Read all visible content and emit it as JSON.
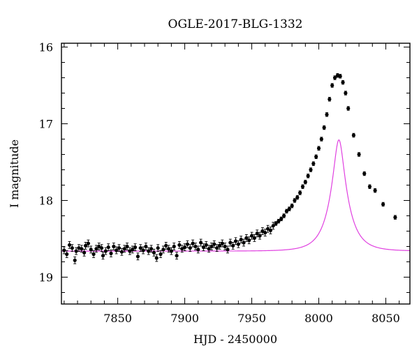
{
  "chart_data": {
    "type": "scatter",
    "title": "OGLE-2017-BLG-1332",
    "xlabel": "HJD - 2450000",
    "ylabel": "I magnitude",
    "xlim": [
      7808,
      8068
    ],
    "ylim": [
      19.35,
      15.95
    ],
    "y_inverted": true,
    "grid": false,
    "xticks": [
      "7850",
      "7900",
      "7950",
      "8000",
      "8050"
    ],
    "yticks": [
      "16",
      "17",
      "18",
      "19"
    ],
    "colors": {
      "data": "#000000",
      "model": "#e040e0",
      "frame": "#000000"
    },
    "series": [
      {
        "kind": "data-points-with-error-bars",
        "points": [
          [
            7810,
            18.65
          ],
          [
            7812,
            18.7
          ],
          [
            7814,
            18.58
          ],
          [
            7816,
            18.62
          ],
          [
            7818,
            18.78
          ],
          [
            7819,
            18.66
          ],
          [
            7821,
            18.62
          ],
          [
            7823,
            18.63
          ],
          [
            7825,
            18.68
          ],
          [
            7826,
            18.59
          ],
          [
            7828,
            18.56
          ],
          [
            7830,
            18.64
          ],
          [
            7832,
            18.7
          ],
          [
            7834,
            18.63
          ],
          [
            7836,
            18.6
          ],
          [
            7838,
            18.62
          ],
          [
            7839,
            18.72
          ],
          [
            7841,
            18.66
          ],
          [
            7843,
            18.61
          ],
          [
            7845,
            18.69
          ],
          [
            7847,
            18.6
          ],
          [
            7849,
            18.65
          ],
          [
            7851,
            18.62
          ],
          [
            7853,
            18.67
          ],
          [
            7855,
            18.63
          ],
          [
            7857,
            18.6
          ],
          [
            7859,
            18.66
          ],
          [
            7861,
            18.64
          ],
          [
            7863,
            18.61
          ],
          [
            7865,
            18.73
          ],
          [
            7867,
            18.62
          ],
          [
            7869,
            18.65
          ],
          [
            7871,
            18.6
          ],
          [
            7873,
            18.66
          ],
          [
            7875,
            18.63
          ],
          [
            7877,
            18.68
          ],
          [
            7879,
            18.75
          ],
          [
            7880,
            18.62
          ],
          [
            7882,
            18.7
          ],
          [
            7884,
            18.64
          ],
          [
            7886,
            18.59
          ],
          [
            7888,
            18.63
          ],
          [
            7890,
            18.66
          ],
          [
            7892,
            18.6
          ],
          [
            7894,
            18.72
          ],
          [
            7896,
            18.58
          ],
          [
            7898,
            18.63
          ],
          [
            7900,
            18.61
          ],
          [
            7902,
            18.57
          ],
          [
            7904,
            18.62
          ],
          [
            7906,
            18.56
          ],
          [
            7908,
            18.6
          ],
          [
            7910,
            18.64
          ],
          [
            7912,
            18.55
          ],
          [
            7914,
            18.61
          ],
          [
            7916,
            18.58
          ],
          [
            7918,
            18.63
          ],
          [
            7920,
            18.6
          ],
          [
            7922,
            18.57
          ],
          [
            7924,
            18.62
          ],
          [
            7926,
            18.59
          ],
          [
            7928,
            18.56
          ],
          [
            7930,
            18.6
          ],
          [
            7932,
            18.64
          ],
          [
            7934,
            18.55
          ],
          [
            7936,
            18.59
          ],
          [
            7938,
            18.53
          ],
          [
            7940,
            18.57
          ],
          [
            7942,
            18.51
          ],
          [
            7944,
            18.55
          ],
          [
            7946,
            18.49
          ],
          [
            7948,
            18.52
          ],
          [
            7950,
            18.46
          ],
          [
            7952,
            18.49
          ],
          [
            7954,
            18.43
          ],
          [
            7956,
            18.46
          ],
          [
            7958,
            18.4
          ],
          [
            7960,
            18.42
          ],
          [
            7962,
            18.37
          ],
          [
            7964,
            18.39
          ],
          [
            7966,
            18.33
          ],
          [
            7968,
            18.3
          ],
          [
            7970,
            18.27
          ],
          [
            7972,
            18.24
          ],
          [
            7974,
            18.2
          ],
          [
            7976,
            18.14
          ],
          [
            7978,
            18.11
          ],
          [
            7980,
            18.07
          ],
          [
            7982,
            18.0
          ],
          [
            7984,
            17.96
          ],
          [
            7986,
            17.9
          ],
          [
            7988,
            17.82
          ],
          [
            7990,
            17.76
          ],
          [
            7992,
            17.68
          ],
          [
            7994,
            17.6
          ],
          [
            7996,
            17.52
          ],
          [
            7998,
            17.43
          ],
          [
            8000,
            17.32
          ],
          [
            8002,
            17.2
          ],
          [
            8004,
            17.05
          ],
          [
            8006,
            16.88
          ],
          [
            8008,
            16.68
          ],
          [
            8010,
            16.5
          ],
          [
            8012,
            16.4
          ],
          [
            8014,
            16.37
          ],
          [
            8016,
            16.38
          ],
          [
            8018,
            16.46
          ],
          [
            8020,
            16.6
          ],
          [
            8022,
            16.8
          ],
          [
            8026,
            17.15
          ],
          [
            8030,
            17.4
          ],
          [
            8034,
            17.65
          ],
          [
            8038,
            17.82
          ],
          [
            8042,
            17.87
          ],
          [
            8048,
            18.05
          ],
          [
            8057,
            18.22
          ]
        ]
      },
      {
        "kind": "model-curve",
        "t0": 8015,
        "tE": 13,
        "u0": 0.27,
        "baseline": 18.66
      }
    ]
  }
}
